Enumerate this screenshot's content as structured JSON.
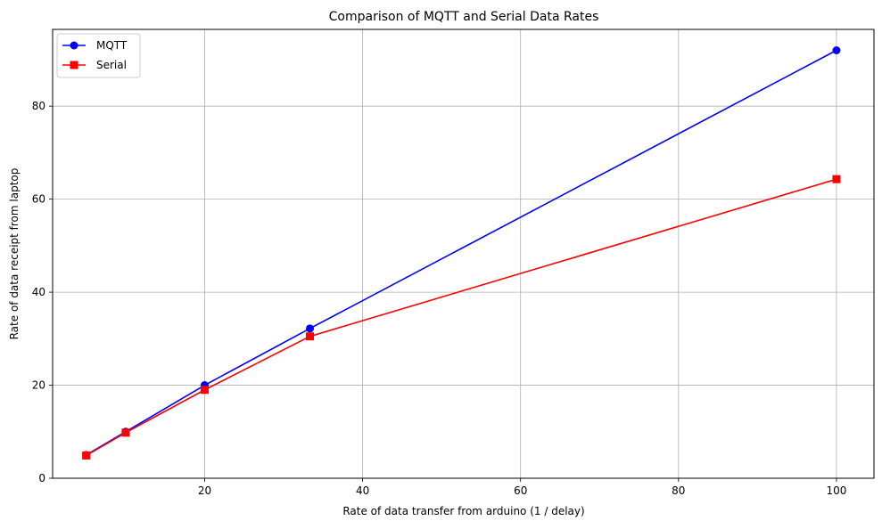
{
  "chart_data": {
    "type": "line",
    "title": "Comparison of MQTT and Serial Data Rates",
    "xlabel": "Rate of data transfer from arduino (1 / delay)",
    "ylabel": "Rate of data receipt from laptop",
    "xlim": [
      0.75,
      104.75
    ],
    "ylim": [
      0,
      96.5
    ],
    "xticks": [
      20,
      40,
      60,
      80,
      100
    ],
    "yticks": [
      0,
      20,
      40,
      60,
      80
    ],
    "grid": true,
    "legend_position": "top-left",
    "series": [
      {
        "name": "MQTT",
        "color": "#0000ff",
        "marker": "circle",
        "x": [
          5,
          10,
          20,
          33.33,
          100
        ],
        "y": [
          5,
          10,
          20,
          32.2,
          92
        ]
      },
      {
        "name": "Serial",
        "color": "#ff0000",
        "marker": "square",
        "x": [
          5,
          10,
          20,
          33.33,
          100
        ],
        "y": [
          4.9,
          9.8,
          19,
          30.5,
          64.3
        ]
      }
    ]
  }
}
